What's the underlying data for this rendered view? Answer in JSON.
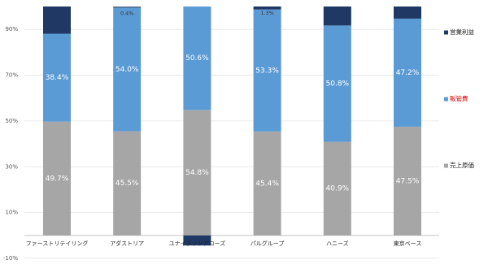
{
  "chart_data": {
    "type": "stacked-bar",
    "categories": [
      "ファーストリテイリング",
      "アダストリア",
      "ユナイテッドアローズ",
      "パルグループ",
      "ハニーズ",
      "東京ベース"
    ],
    "series": [
      {
        "name": "売上原価",
        "color": "#a6a6a6",
        "values": [
          49.7,
          45.5,
          54.8,
          45.4,
          40.9,
          47.5
        ],
        "value_labels": [
          "49.7%",
          "45.5%",
          "54.8%",
          "45.4%",
          "40.9%",
          "47.5%"
        ]
      },
      {
        "name": "販管費",
        "color": "#5b9bd5",
        "legend_text_color": "#e00000",
        "values": [
          38.4,
          54.0,
          50.6,
          53.3,
          50.8,
          47.2
        ],
        "value_labels": [
          "38.4%",
          "54.0%",
          "50.6%",
          "53.3%",
          "50.8%",
          "47.2%"
        ]
      },
      {
        "name": "営業利益",
        "color": "#203864",
        "values": [
          11.9,
          0.4,
          -4.4,
          1.3,
          8.3,
          5.3
        ],
        "value_labels": [
          null,
          "0.4%",
          null,
          "1.3%",
          null,
          null
        ]
      }
    ],
    "ylim": [
      -10,
      100
    ],
    "yticks": [
      {
        "value": -10,
        "label": "-10%"
      },
      {
        "value": 10,
        "label": "10%"
      },
      {
        "value": 30,
        "label": "30%"
      },
      {
        "value": 50,
        "label": "50%"
      },
      {
        "value": 70,
        "label": "70%"
      },
      {
        "value": 90,
        "label": "90%"
      }
    ],
    "grid": true
  }
}
